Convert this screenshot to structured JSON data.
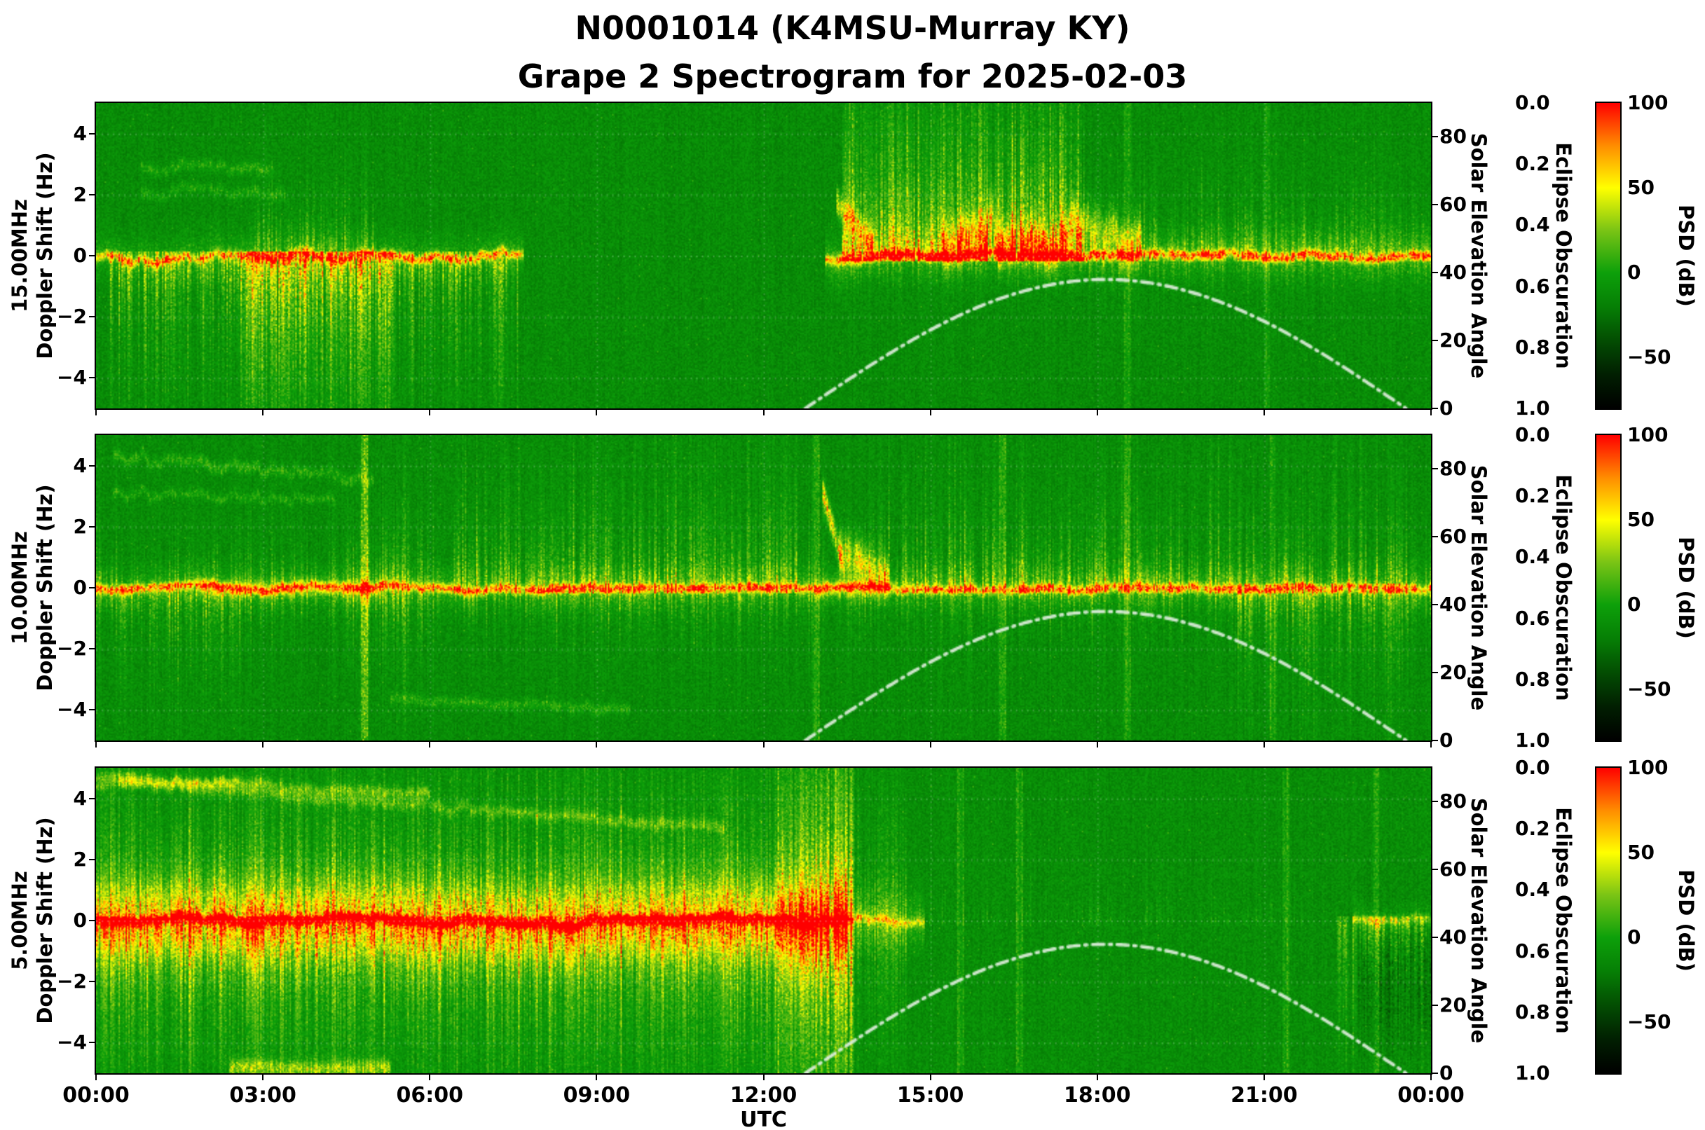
{
  "title": {
    "line1": "N0001014 (K4MSU-Murray KY)",
    "line2": "Grape 2 Spectrogram for 2025-02-03"
  },
  "x_axis": {
    "label": "UTC",
    "tick_labels": [
      "00:00",
      "03:00",
      "06:00",
      "09:00",
      "12:00",
      "15:00",
      "18:00",
      "21:00",
      "00:00"
    ],
    "range_hours": [
      0,
      24
    ]
  },
  "right_axes": {
    "solar": {
      "label": "Solar Elevation Angle",
      "tick_labels": [
        "0",
        "20",
        "40",
        "60",
        "80"
      ],
      "tick_values": [
        0,
        20,
        40,
        60,
        80
      ],
      "range_deg": [
        0,
        90
      ]
    },
    "eclipse": {
      "label": "Eclipse Obscuration",
      "tick_labels": [
        "0.0",
        "0.2",
        "0.4",
        "0.6",
        "0.8",
        "1.0"
      ],
      "tick_values": [
        0,
        0.2,
        0.4,
        0.6,
        0.8,
        1.0
      ],
      "range": [
        0,
        1
      ],
      "inverted": true
    }
  },
  "colorbar": {
    "label": "PSD (dB)",
    "tick_labels": [
      "100",
      "50",
      "0",
      "−50"
    ],
    "tick_values": [
      100,
      50,
      0,
      -50
    ],
    "range_db": [
      -80,
      100
    ],
    "colormap_stops": [
      [
        100,
        "#ff0000"
      ],
      [
        75,
        "#ff8c00"
      ],
      [
        50,
        "#ffff00"
      ],
      [
        25,
        "#7ac415"
      ],
      [
        0,
        "#0da00a"
      ],
      [
        -20,
        "#067f05"
      ],
      [
        -40,
        "#034d02"
      ],
      [
        -60,
        "#011f01"
      ],
      [
        -80,
        "#000000"
      ]
    ]
  },
  "solar_curve": {
    "name": "Solar Elevation Angle overlay",
    "sunrise_utc_h": 12.75,
    "sunset_utc_h": 23.55,
    "peak_utc_h": 18.15,
    "peak_deg": 38,
    "line_style": "dash-dot",
    "color": "#dfeedd"
  },
  "chart_data": [
    {
      "type": "heatmap",
      "freq_label": "15.00MHz",
      "ylabel": "Doppler Shift (Hz)",
      "xlabel": "UTC",
      "y_tick_labels": [
        "4",
        "2",
        "0",
        "−2",
        "−4"
      ],
      "y_tick_values": [
        4,
        2,
        0,
        -2,
        -4
      ],
      "y_range_hz": [
        -5,
        5
      ],
      "seed": 101,
      "background_db": -12,
      "noise_db": 9,
      "center_line": [
        {
          "t0": 0,
          "t1": 7.7,
          "amp": 52,
          "halo_amp": 14,
          "halo_w_hz": 0.5,
          "wiggle_hz": 0.35
        },
        {
          "t0": 13.1,
          "t1": 24,
          "amp": 58,
          "halo_amp": 16,
          "halo_w_hz": 0.5,
          "wiggle_hz": 0.25
        }
      ],
      "streaks": [
        {
          "t0": 0.2,
          "t1": 7.6,
          "side": -1,
          "reach_hz": 3.4,
          "amp": 34,
          "density": 0.7
        },
        {
          "t0": 2.6,
          "t1": 5.4,
          "side": -1,
          "reach_hz": 3.8,
          "amp": 42,
          "density": 0.85
        },
        {
          "t0": 2.8,
          "t1": 5.0,
          "side": 1,
          "reach_hz": 1.5,
          "amp": 30,
          "density": 0.6
        },
        {
          "t0": 13.4,
          "t1": 17.8,
          "side": 1,
          "reach_hz": 4.4,
          "amp": 44,
          "density": 0.85
        },
        {
          "t0": 13.4,
          "t1": 17.8,
          "side": 1,
          "reach_hz": 2.0,
          "amp": 40,
          "density": 0.8
        },
        {
          "t0": 17.8,
          "t1": 24,
          "side": 1,
          "reach_hz": 1.5,
          "amp": 30,
          "density": 0.7
        },
        {
          "t0": 13.2,
          "t1": 24,
          "side": -1,
          "reach_hz": 0.8,
          "amp": 22,
          "density": 0.5
        }
      ],
      "traces": [
        {
          "t0": 0.8,
          "t1": 3.2,
          "y0_hz": 2.9,
          "y1_hz": 2.9,
          "amp": 16,
          "w_hz": 0.12,
          "wiggle_hz": 0.25
        },
        {
          "t0": 0.8,
          "t1": 3.4,
          "y0_hz": 2.1,
          "y1_hz": 2.1,
          "amp": 14,
          "w_hz": 0.12,
          "wiggle_hz": 0.3
        },
        {
          "t0": 15.2,
          "t1": 18.8,
          "y0_hz": 0.6,
          "y1_hz": 0.6,
          "amp": 40,
          "w_hz": 0.45,
          "wiggle_hz": 0.9
        },
        {
          "t0": 13.3,
          "t1": 14.0,
          "y0_hz": 1.8,
          "y1_hz": 0.3,
          "amp": 45,
          "w_hz": 0.3,
          "wiggle_hz": 0.2
        }
      ],
      "vlines": [
        {
          "t": 18.55,
          "amp": 16
        },
        {
          "t": 21.05,
          "amp": 14
        }
      ],
      "bursts": []
    },
    {
      "type": "heatmap",
      "freq_label": "10.00MHz",
      "ylabel": "Doppler Shift (Hz)",
      "xlabel": "UTC",
      "y_tick_labels": [
        "4",
        "2",
        "0",
        "−2",
        "−4"
      ],
      "y_tick_values": [
        4,
        2,
        0,
        -2,
        -4
      ],
      "y_range_hz": [
        -5,
        5
      ],
      "seed": 202,
      "background_db": -12,
      "noise_db": 9,
      "center_line": [
        {
          "t0": 0,
          "t1": 24,
          "amp": 60,
          "halo_amp": 15,
          "halo_w_hz": 0.42,
          "wiggle_hz": 0.18
        }
      ],
      "streaks": [
        {
          "t0": 0,
          "t1": 24,
          "side": 0,
          "reach_hz": 1.3,
          "amp": 24,
          "density": 0.5
        },
        {
          "t0": 6.4,
          "t1": 12.6,
          "side": 1,
          "reach_hz": 2.9,
          "amp": 32,
          "density": 0.6
        },
        {
          "t0": 4.5,
          "t1": 6.0,
          "side": 0,
          "reach_hz": 2.2,
          "amp": 26,
          "density": 0.5
        },
        {
          "t0": 13.9,
          "t1": 23.6,
          "side": 1,
          "reach_hz": 2.4,
          "amp": 30,
          "density": 0.55
        },
        {
          "t0": 0.4,
          "t1": 2.6,
          "side": -1,
          "reach_hz": 2.4,
          "amp": 26,
          "density": 0.5
        },
        {
          "t0": 20.4,
          "t1": 23.8,
          "side": -1,
          "reach_hz": 2.6,
          "amp": 28,
          "density": 0.5
        },
        {
          "t0": 8.0,
          "t1": 12.0,
          "side": -1,
          "reach_hz": 1.2,
          "amp": 20,
          "density": 0.4
        }
      ],
      "traces": [
        {
          "t0": 0.3,
          "t1": 5.0,
          "y0_hz": 4.35,
          "y1_hz": 3.6,
          "amp": 18,
          "w_hz": 0.12,
          "wiggle_hz": 0.3
        },
        {
          "t0": 0.3,
          "t1": 4.3,
          "y0_hz": 3.15,
          "y1_hz": 2.9,
          "amp": 15,
          "w_hz": 0.1,
          "wiggle_hz": 0.25
        },
        {
          "t0": 5.3,
          "t1": 9.6,
          "y0_hz": -3.6,
          "y1_hz": -3.95,
          "amp": 16,
          "w_hz": 0.12,
          "wiggle_hz": 0.15
        },
        {
          "t0": 1.8,
          "t1": 5.2,
          "y0_hz": 0,
          "y1_hz": 0,
          "amp": 25,
          "w_hz": 0.18,
          "wiggle_hz": 0.15
        },
        {
          "t0": 13.05,
          "t1": 13.45,
          "y0_hz": 3.3,
          "y1_hz": 0.6,
          "amp": 52,
          "w_hz": 0.3,
          "wiggle_hz": 0.1
        },
        {
          "t0": 13.35,
          "t1": 14.25,
          "y0_hz": 1.3,
          "y1_hz": 0.35,
          "amp": 42,
          "w_hz": 0.45,
          "wiggle_hz": 0.1
        },
        {
          "t0": 12.9,
          "t1": 14.3,
          "y0_hz": 0,
          "y1_hz": 0,
          "amp": 20,
          "w_hz": 0.2,
          "wiggle_hz": 0.1
        }
      ],
      "vlines": [
        {
          "t": 4.82,
          "amp": 36
        },
        {
          "t": 12.95,
          "amp": 22
        },
        {
          "t": 16.3,
          "amp": 18
        },
        {
          "t": 18.55,
          "amp": 16
        },
        {
          "t": 21.15,
          "amp": 14
        }
      ],
      "bursts": []
    },
    {
      "type": "heatmap",
      "freq_label": "5.00MHz",
      "ylabel": "Doppler Shift (Hz)",
      "xlabel": "UTC",
      "y_tick_labels": [
        "4",
        "2",
        "0",
        "−2",
        "−4"
      ],
      "y_tick_values": [
        4,
        2,
        0,
        -2,
        -4
      ],
      "y_range_hz": [
        -5,
        5
      ],
      "seed": 303,
      "background_db": -11,
      "noise_db": 9,
      "center_line": [
        {
          "t0": 0,
          "t1": 13.55,
          "amp": 92,
          "halo_amp": 42,
          "halo_w_hz": 0.85,
          "wiggle_hz": 0.22
        },
        {
          "t0": 13.55,
          "t1": 14.9,
          "amp": 40,
          "halo_amp": 18,
          "halo_w_hz": 0.6,
          "wiggle_hz": 0.25
        },
        {
          "t0": 22.6,
          "t1": 24,
          "amp": 26,
          "halo_amp": 10,
          "halo_w_hz": 0.4,
          "wiggle_hz": 0.2
        }
      ],
      "streaks": [
        {
          "t0": 0,
          "t1": 13.6,
          "side": 0,
          "reach_hz": 2.3,
          "amp": 36,
          "density": 0.9
        },
        {
          "t0": 0,
          "t1": 13.6,
          "side": 0,
          "reach_hz": 4.6,
          "amp": 24,
          "density": 0.55
        },
        {
          "t0": 0,
          "t1": 13.6,
          "side": -1,
          "reach_hz": 3.2,
          "amp": 26,
          "density": 0.6
        },
        {
          "t0": 22.3,
          "t1": 24,
          "side": -1,
          "reach_hz": 3.2,
          "amp": 28,
          "density": 0.65
        },
        {
          "t0": 14.9,
          "t1": 22.3,
          "side": 1,
          "reach_hz": 1.2,
          "amp": 10,
          "density": 0.25
        }
      ],
      "traces": [
        {
          "t0": 0,
          "t1": 6.0,
          "y0_hz": 4.75,
          "y1_hz": 4.15,
          "amp": 26,
          "w_hz": 0.12,
          "wiggle_hz": 0.18
        },
        {
          "t0": 0,
          "t1": 2.6,
          "y0_hz": 4.45,
          "y1_hz": 4.6,
          "amp": 18,
          "w_hz": 0.1,
          "wiggle_hz": 0.15
        },
        {
          "t0": 0.4,
          "t1": 11.3,
          "y0_hz": 4.55,
          "y1_hz": 3.05,
          "amp": 22,
          "w_hz": 0.13,
          "wiggle_hz": 0.2
        },
        {
          "t0": 2.4,
          "t1": 5.3,
          "y0_hz": -4.8,
          "y1_hz": -4.8,
          "amp": 36,
          "w_hz": 0.18,
          "wiggle_hz": 0.1
        },
        {
          "t0": 22.7,
          "t1": 24,
          "y0_hz": -2,
          "y1_hz": -2,
          "amp": -14,
          "w_hz": 1.6,
          "wiggle_hz": 0
        }
      ],
      "vlines": [
        {
          "t": 15.55,
          "amp": 16
        },
        {
          "t": 16.6,
          "amp": 14
        },
        {
          "t": 21.4,
          "amp": 18
        },
        {
          "t": 23.0,
          "amp": 14
        }
      ],
      "bursts": [
        {
          "t0": 12.25,
          "t1": 13.65,
          "reach_hz": 5.2,
          "amp": 52,
          "density": 0.95
        },
        {
          "t0": 13.65,
          "t1": 14.6,
          "reach_hz": 3.0,
          "amp": 24,
          "density": 0.7
        }
      ]
    }
  ]
}
